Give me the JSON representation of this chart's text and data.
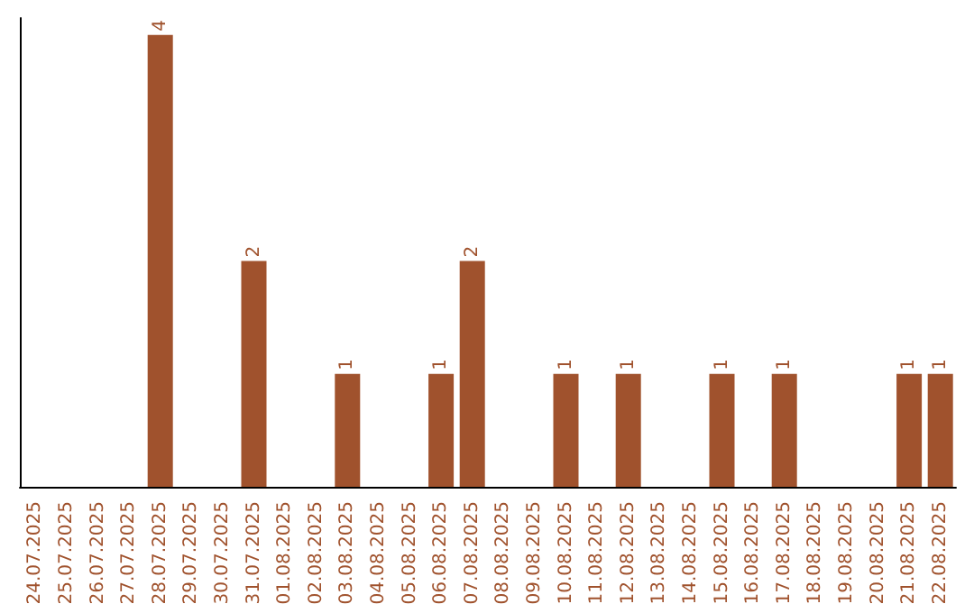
{
  "chart_data": {
    "type": "bar",
    "categories": [
      "24.07.2025",
      "25.07.2025",
      "26.07.2025",
      "27.07.2025",
      "28.07.2025",
      "29.07.2025",
      "30.07.2025",
      "31.07.2025",
      "01.08.2025",
      "02.08.2025",
      "03.08.2025",
      "04.08.2025",
      "05.08.2025",
      "06.08.2025",
      "07.08.2025",
      "08.08.2025",
      "09.08.2025",
      "10.08.2025",
      "11.08.2025",
      "12.08.2025",
      "13.08.2025",
      "14.08.2025",
      "15.08.2025",
      "16.08.2025",
      "17.08.2025",
      "18.08.2025",
      "19.08.2025",
      "20.08.2025",
      "21.08.2025",
      "22.08.2025"
    ],
    "values": [
      0,
      0,
      0,
      0,
      4,
      0,
      0,
      2,
      0,
      0,
      1,
      0,
      0,
      1,
      2,
      0,
      0,
      1,
      0,
      1,
      0,
      0,
      1,
      0,
      1,
      0,
      0,
      0,
      1,
      1
    ],
    "value_labels": [
      null,
      null,
      null,
      null,
      "4",
      null,
      null,
      "2",
      null,
      null,
      "1",
      null,
      null,
      "1",
      "2",
      null,
      null,
      "1",
      null,
      "1",
      null,
      null,
      "1",
      null,
      "1",
      null,
      null,
      null,
      "1",
      "1"
    ],
    "color": "#a0522d",
    "ylim": [
      0,
      4.15
    ],
    "tick_labels": "x",
    "grid": false
  }
}
